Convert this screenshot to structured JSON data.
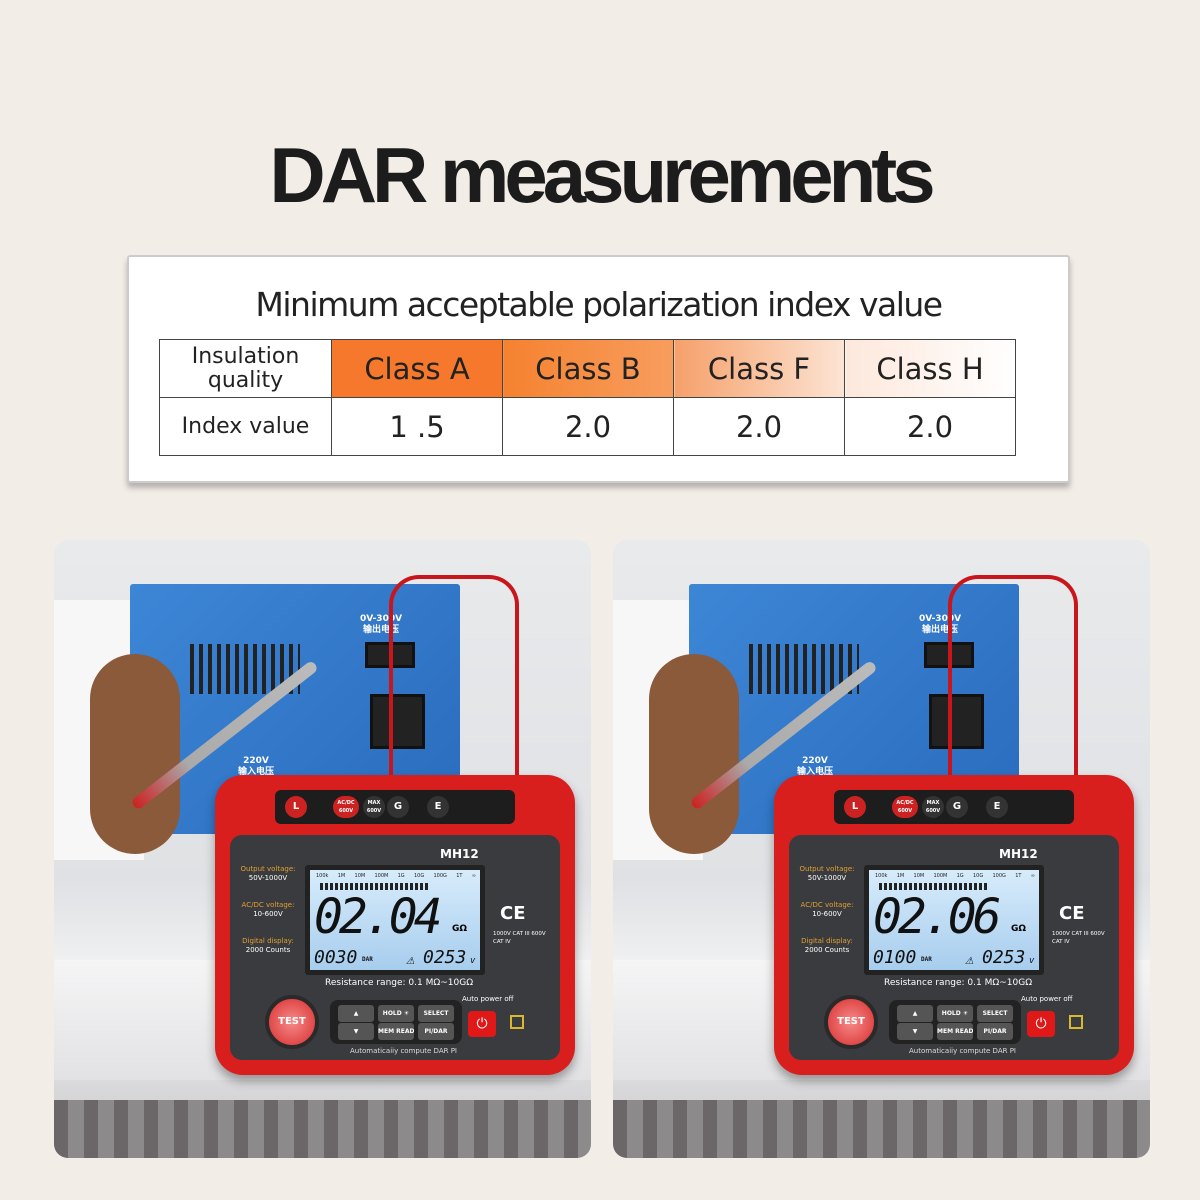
{
  "title": "DAR measurements",
  "table": {
    "caption": "Minimum acceptable  polarization index value",
    "row_header_1": "Insulation quality",
    "row_header_2": "Index value",
    "classes": [
      "Class A",
      "Class B",
      "Class F",
      "Class  H"
    ],
    "values": [
      "1 .5",
      "2.0",
      "2.0",
      "2.0"
    ],
    "header_colors": [
      "#f5782c",
      "#f68a44",
      "#f8b78c",
      "#fdeee6"
    ]
  },
  "panels": [
    {
      "transformer": {
        "out": "0V-300V",
        "out_cn": "输出电压",
        "in": "220V",
        "in_cn": "输入电压"
      },
      "device": {
        "model": "MH12",
        "main": "02.04",
        "unit": "GΩ",
        "left_value": "0030",
        "left_label": "DAR",
        "voltage": "0253",
        "voltage_unit": "v",
        "scale": [
          "100k",
          "1M",
          "10M",
          "100M",
          "1G",
          "10G",
          "100G",
          "1T",
          "∞"
        ],
        "jacks": [
          "L",
          "AC/DC 600V",
          "MAX 600V",
          "G",
          "E"
        ],
        "specs": [
          {
            "label": "Output voltage:",
            "value": "50V-1000V"
          },
          {
            "label": "AC/DC voltage:",
            "value": "10-600V"
          },
          {
            "label": "Digital display:",
            "value": "2000 Counts"
          }
        ],
        "ce": "CE",
        "cat": "1000V CAT III 600V CAT IV",
        "range": "Resistance range:  0.1 MΩ~10GΩ",
        "auto_off": "Auto power off",
        "buttons": [
          "▲",
          "▼",
          "HOLD ☀",
          "MEM READ",
          "SELECT",
          "PI/DAR"
        ],
        "test": "TEST",
        "power": "⏻",
        "footer": "Automaticaiiy compute DAR PI"
      }
    },
    {
      "transformer": {
        "out": "0V-300V",
        "out_cn": "输出电压",
        "in": "220V",
        "in_cn": "输入电压"
      },
      "device": {
        "model": "MH12",
        "main": "02.06",
        "unit": "GΩ",
        "left_value": "0100",
        "left_label": "DAR",
        "voltage": "0253",
        "voltage_unit": "v",
        "scale": [
          "100k",
          "1M",
          "10M",
          "100M",
          "1G",
          "10G",
          "100G",
          "1T",
          "∞"
        ],
        "jacks": [
          "L",
          "AC/DC 600V",
          "MAX 600V",
          "G",
          "E"
        ],
        "specs": [
          {
            "label": "Output voltage:",
            "value": "50V-1000V"
          },
          {
            "label": "AC/DC voltage:",
            "value": "10-600V"
          },
          {
            "label": "Digital display:",
            "value": "2000 Counts"
          }
        ],
        "ce": "CE",
        "cat": "1000V CAT III 600V CAT IV",
        "range": "Resistance range:  0.1 MΩ~10GΩ",
        "auto_off": "Auto power off",
        "buttons": [
          "▲",
          "▼",
          "HOLD ☀",
          "MEM READ",
          "SELECT",
          "PI/DAR"
        ],
        "test": "TEST",
        "power": "⏻",
        "footer": "Automaticaiiy compute DAR PI"
      }
    }
  ]
}
